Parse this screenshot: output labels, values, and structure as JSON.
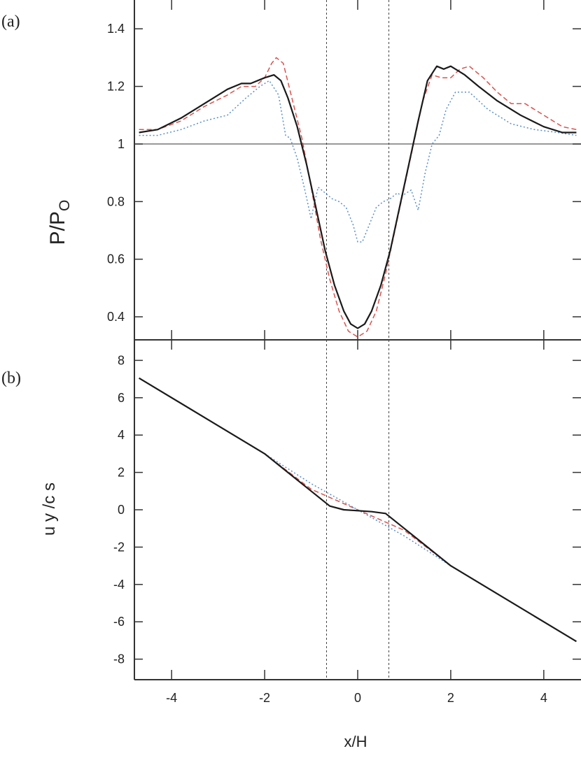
{
  "chart_data": [
    {
      "type": "line",
      "panel_label": "(a)",
      "ylabel": "P/P",
      "ylabel_subscript": "O",
      "xlabel": "",
      "xlim": [
        -4.8,
        4.8
      ],
      "ylim": [
        0.32,
        1.5
      ],
      "yticks": [
        0.4,
        0.6,
        0.8,
        1.0,
        1.2,
        1.4
      ],
      "ytick_labels": [
        "0.4",
        "0.6",
        "0.8",
        "1",
        "1.2",
        "1.4"
      ],
      "xticks": [
        -4,
        -2,
        0,
        2,
        4
      ],
      "reference_hline": 1.0,
      "vlines": [
        -0.67,
        0.67
      ],
      "series": [
        {
          "color": "#1a1a1a",
          "style": "solid",
          "x": [
            -4.7,
            -4.3,
            -3.8,
            -3.3,
            -2.8,
            -2.5,
            -2.3,
            -2.0,
            -1.8,
            -1.65,
            -1.5,
            -1.3,
            -1.1,
            -0.9,
            -0.7,
            -0.5,
            -0.3,
            -0.15,
            0.0,
            0.15,
            0.3,
            0.5,
            0.7,
            0.9,
            1.1,
            1.3,
            1.5,
            1.7,
            1.85,
            2.0,
            2.1,
            2.3,
            2.6,
            3.0,
            3.5,
            4.0,
            4.4,
            4.7
          ],
          "y": [
            1.04,
            1.05,
            1.09,
            1.14,
            1.19,
            1.21,
            1.21,
            1.23,
            1.24,
            1.22,
            1.16,
            1.06,
            0.93,
            0.78,
            0.63,
            0.51,
            0.42,
            0.375,
            0.36,
            0.375,
            0.42,
            0.51,
            0.63,
            0.78,
            0.93,
            1.08,
            1.22,
            1.27,
            1.26,
            1.27,
            1.26,
            1.24,
            1.2,
            1.15,
            1.1,
            1.06,
            1.04,
            1.04
          ]
        },
        {
          "color": "#d9534f",
          "style": "dashed",
          "x": [
            -4.7,
            -4.3,
            -3.8,
            -3.3,
            -2.8,
            -2.5,
            -2.2,
            -2.0,
            -1.85,
            -1.75,
            -1.6,
            -1.4,
            -1.2,
            -1.0,
            -0.8,
            -0.6,
            -0.4,
            -0.2,
            0.0,
            0.2,
            0.4,
            0.6,
            0.8,
            1.0,
            1.2,
            1.4,
            1.6,
            1.8,
            2.0,
            2.2,
            2.4,
            2.7,
            3.0,
            3.3,
            3.6,
            3.8,
            4.1,
            4.4,
            4.7
          ],
          "y": [
            1.05,
            1.05,
            1.08,
            1.13,
            1.17,
            1.2,
            1.2,
            1.23,
            1.28,
            1.3,
            1.28,
            1.15,
            1.02,
            0.85,
            0.67,
            0.53,
            0.42,
            0.35,
            0.33,
            0.35,
            0.42,
            0.55,
            0.7,
            0.85,
            1.0,
            1.15,
            1.24,
            1.23,
            1.23,
            1.26,
            1.27,
            1.23,
            1.18,
            1.14,
            1.14,
            1.12,
            1.09,
            1.06,
            1.05
          ]
        },
        {
          "color": "#5a8fc9",
          "style": "dotted",
          "x": [
            -4.7,
            -4.3,
            -3.8,
            -3.3,
            -2.8,
            -2.4,
            -2.1,
            -1.9,
            -1.7,
            -1.55,
            -1.45,
            -1.3,
            -1.15,
            -1.0,
            -0.95,
            -0.85,
            -0.7,
            -0.55,
            -0.4,
            -0.25,
            -0.1,
            0.0,
            0.1,
            0.25,
            0.4,
            0.55,
            0.7,
            0.85,
            0.95,
            1.05,
            1.15,
            1.3,
            1.45,
            1.6,
            1.75,
            1.9,
            2.1,
            2.4,
            2.8,
            3.3,
            3.8,
            4.3,
            4.7
          ],
          "y": [
            1.03,
            1.03,
            1.05,
            1.08,
            1.1,
            1.16,
            1.2,
            1.22,
            1.17,
            1.03,
            1.02,
            0.95,
            0.85,
            0.74,
            0.78,
            0.85,
            0.83,
            0.81,
            0.8,
            0.78,
            0.72,
            0.66,
            0.66,
            0.72,
            0.78,
            0.8,
            0.81,
            0.83,
            0.82,
            0.83,
            0.84,
            0.77,
            0.9,
            1.0,
            1.03,
            1.12,
            1.18,
            1.18,
            1.12,
            1.07,
            1.05,
            1.04,
            1.03
          ]
        }
      ]
    },
    {
      "type": "line",
      "panel_label": "(b)",
      "ylabel": "u y  /c s",
      "xlabel": "x/H",
      "xlim": [
        -4.8,
        4.8
      ],
      "ylim": [
        -9.1,
        9.1
      ],
      "yticks": [
        -8,
        -6,
        -4,
        -2,
        0,
        2,
        4,
        6,
        8
      ],
      "ytick_labels": [
        "-8",
        "-6",
        "-4",
        "-2",
        "0",
        "2",
        "4",
        "6",
        "8"
      ],
      "xticks": [
        -4,
        -2,
        0,
        2,
        4
      ],
      "xtick_labels": [
        "-4",
        "-2",
        "0",
        "2",
        "4"
      ],
      "vlines": [
        -0.67,
        0.67
      ],
      "series": [
        {
          "color": "#1a1a1a",
          "style": "solid",
          "x": [
            -4.7,
            -3.0,
            -2.0,
            -1.5,
            -1.0,
            -0.6,
            -0.3,
            0.0,
            0.3,
            0.6,
            1.0,
            1.5,
            2.0,
            3.0,
            4.7
          ],
          "y": [
            7.05,
            4.5,
            3.0,
            2.0,
            1.0,
            0.2,
            0.0,
            -0.05,
            -0.1,
            -0.2,
            -1.0,
            -2.0,
            -3.0,
            -4.5,
            -7.05
          ]
        },
        {
          "color": "#d9534f",
          "style": "dashed",
          "x": [
            -2.0,
            -1.0,
            0.0,
            1.0,
            2.0
          ],
          "y": [
            3.0,
            1.1,
            0.0,
            -1.1,
            -3.0
          ]
        },
        {
          "color": "#5a8fc9",
          "style": "dotted",
          "x": [
            -2.0,
            -1.0,
            0.0,
            1.0,
            2.0
          ],
          "y": [
            3.0,
            1.4,
            0.0,
            -1.4,
            -3.0
          ]
        }
      ]
    }
  ]
}
